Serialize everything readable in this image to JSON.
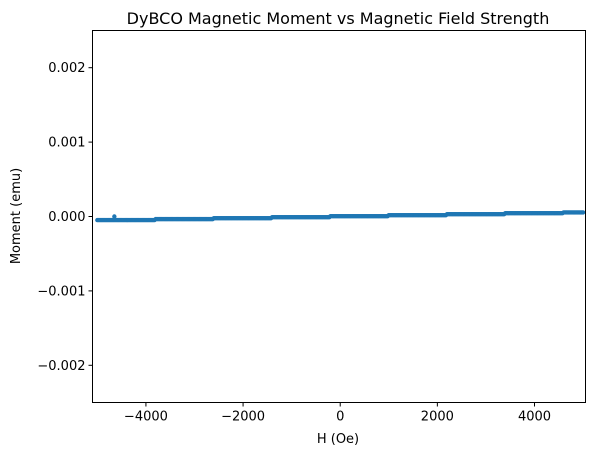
{
  "chart_data": {
    "type": "scatter",
    "title": "DyBCO Magnetic Moment vs Magnetic Field Strength",
    "xlabel": "H (Oe)",
    "ylabel": "Moment (emu)",
    "xlim": [
      -5100,
      5050
    ],
    "ylim": [
      -0.0025,
      0.0025
    ],
    "x_ticks": [
      -4000,
      -2000,
      0,
      2000,
      4000
    ],
    "x_tick_labels": [
      "−4000",
      "−2000",
      "0",
      "2000",
      "4000"
    ],
    "y_ticks": [
      -0.002,
      -0.001,
      0.0,
      0.001,
      0.002
    ],
    "y_tick_labels": [
      "−0.002",
      "−0.001",
      "0.000",
      "0.001",
      "0.002"
    ],
    "grid": false,
    "series": [
      {
        "color": "#1f77b4",
        "marker": "dot",
        "x_start": -5000,
        "x_end": 5000,
        "x_step": 25,
        "step_width": 1200,
        "y_start": -5.5e-05,
        "y_end": 5.5e-05,
        "outliers": [
          {
            "x": -4650,
            "y": 0.0
          }
        ]
      }
    ]
  }
}
